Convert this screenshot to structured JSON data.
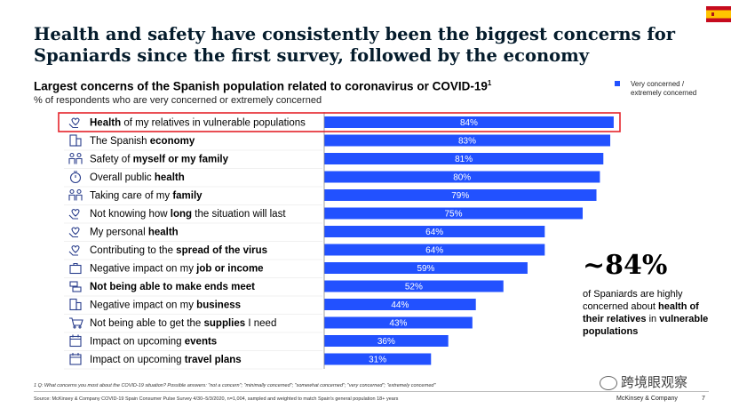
{
  "title": "Health and safety have consistently been the biggest concerns for Spaniards since the first survey, followed by the economy",
  "subtitle": "Largest concerns of the Spanish population related to coronavirus or COVID-19",
  "subtitle_footnote_mark": "1",
  "unit_note": "% of respondents who are very concerned or extremely concerned",
  "legend_label": "Very concerned / extremely concerned",
  "colors": {
    "bar": "#2251ff",
    "highlight_box": "#e5242b",
    "icon": "#2a3e8c",
    "title": "#051c2c"
  },
  "chart_data": {
    "type": "bar",
    "orientation": "horizontal",
    "categories": [
      "Health of my relatives in vulnerable populations",
      "The Spanish economy",
      "Safety of myself or my family",
      "Overall public health",
      "Taking care of my family",
      "Not knowing how long the situation will last",
      "My personal health",
      "Contributing to the spread of the virus",
      "Negative impact on my job or income",
      "Not being able to make ends meet",
      "Negative impact on my business",
      "Not being able to get the supplies I need",
      "Impact on upcoming events",
      "Impact on upcoming travel plans"
    ],
    "label_parts": [
      [
        {
          "t": "Health",
          "b": true
        },
        {
          "t": " of my relatives in vulnerable populations",
          "b": false
        }
      ],
      [
        {
          "t": "The Spanish ",
          "b": false
        },
        {
          "t": "economy",
          "b": true
        }
      ],
      [
        {
          "t": "Safety of ",
          "b": false
        },
        {
          "t": "myself or my family",
          "b": true
        }
      ],
      [
        {
          "t": "Overall public ",
          "b": false
        },
        {
          "t": "health",
          "b": true
        }
      ],
      [
        {
          "t": "Taking care of my ",
          "b": false
        },
        {
          "t": "family",
          "b": true
        }
      ],
      [
        {
          "t": "Not knowing how ",
          "b": false
        },
        {
          "t": "long",
          "b": true
        },
        {
          "t": " the situation will last",
          "b": false
        }
      ],
      [
        {
          "t": "My personal ",
          "b": false
        },
        {
          "t": "health",
          "b": true
        }
      ],
      [
        {
          "t": "Contributing to the ",
          "b": false
        },
        {
          "t": "spread of the virus",
          "b": true
        }
      ],
      [
        {
          "t": "Negative impact on my ",
          "b": false
        },
        {
          "t": "job or income",
          "b": true
        }
      ],
      [
        {
          "t": "Not being able to make ends meet",
          "b": true
        }
      ],
      [
        {
          "t": "Negative impact on my ",
          "b": false
        },
        {
          "t": "business",
          "b": true
        }
      ],
      [
        {
          "t": "Not being able to get the ",
          "b": false
        },
        {
          "t": "supplies",
          "b": true
        },
        {
          "t": " I need",
          "b": false
        }
      ],
      [
        {
          "t": "Impact on upcoming ",
          "b": false
        },
        {
          "t": "events",
          "b": true
        }
      ],
      [
        {
          "t": "Impact on upcoming ",
          "b": false
        },
        {
          "t": "travel plans",
          "b": true
        }
      ]
    ],
    "icons": [
      "heart-hand-icon",
      "building-icon",
      "family-icon",
      "stopwatch-icon",
      "family-icon",
      "heart-hand-icon",
      "heart-hand-icon",
      "heart-hand-icon",
      "briefcase-icon",
      "money-icon",
      "building-icon",
      "shopping-cart-icon",
      "calendar-icon",
      "calendar-icon"
    ],
    "values": [
      84,
      83,
      81,
      80,
      79,
      75,
      64,
      64,
      59,
      52,
      44,
      43,
      36,
      31
    ],
    "value_labels": [
      "84%",
      "83%",
      "81%",
      "80%",
      "79%",
      "75%",
      "64%",
      "64%",
      "59%",
      "52%",
      "44%",
      "43%",
      "36%",
      "31%"
    ],
    "xlim": [
      0,
      100
    ],
    "highlighted_category": "Health of my relatives in vulnerable populations",
    "legend_placement": "top-right"
  },
  "callout": {
    "big": "~84%",
    "text_prefix": "of Spaniards are highly concerned about ",
    "text_bold": "health of their relatives",
    "text_mid": " in ",
    "text_bold2": "vulnerable populations"
  },
  "footnote": "1 Q: What concerns you most about the COVID-19 situation? Possible answers: \"not a concern\"; \"minimally concerned\"; \"somewhat concerned\"; \"very concerned\"; \"extremely concerned\"",
  "source": "Source: McKinsey & Company COVID-19 Spain Consumer Pulse Survey 4/30–5/3/2020, n=1,004, sampled and weighted to match Spain's general population 18+ years",
  "watermark": "跨境眼观察",
  "brand": "McKinsey & Company",
  "page_number": "7"
}
